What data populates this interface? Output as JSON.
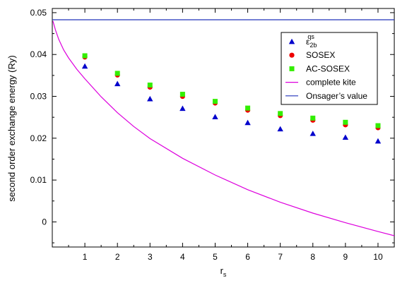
{
  "chart_data": {
    "type": "scatter",
    "title": "",
    "xlabel": "r",
    "xlabel_sub": "s",
    "ylabel": "second order exchange energy (Ry)",
    "xlim": [
      0,
      10.5
    ],
    "ylim": [
      -0.006,
      0.051
    ],
    "xticks": [
      1,
      2,
      3,
      4,
      5,
      6,
      7,
      8,
      9,
      10
    ],
    "yticks": [
      0,
      0.01,
      0.02,
      0.03,
      0.04,
      0.05
    ],
    "ytick_labels": [
      "0",
      "0.01",
      "0.02",
      "0.03",
      "0.04",
      "0.05"
    ],
    "legend_position": "top-right",
    "series": [
      {
        "name": "ε",
        "name_sub": "2b",
        "name_sup": "qs",
        "marker": "triangle",
        "color": "#0000cc",
        "x": [
          1,
          2,
          3,
          4,
          5,
          6,
          7,
          8,
          9,
          10
        ],
        "y": [
          0.0372,
          0.033,
          0.0294,
          0.0271,
          0.0251,
          0.0237,
          0.0222,
          0.0211,
          0.0202,
          0.0193
        ]
      },
      {
        "name": "SOSEX",
        "marker": "circle",
        "color": "#ee0000",
        "x": [
          1,
          2,
          3,
          4,
          5,
          6,
          7,
          8,
          9,
          10
        ],
        "y": [
          0.0394,
          0.0351,
          0.0322,
          0.03,
          0.0284,
          0.0267,
          0.0254,
          0.0243,
          0.0232,
          0.0225
        ]
      },
      {
        "name": "AC-SOSEX",
        "marker": "square",
        "color": "#33ee00",
        "x": [
          1,
          2,
          3,
          4,
          5,
          6,
          7,
          8,
          9,
          10
        ],
        "y": [
          0.0397,
          0.0355,
          0.0327,
          0.0305,
          0.0288,
          0.0272,
          0.0259,
          0.0248,
          0.0238,
          0.023
        ]
      },
      {
        "name": "complete kite",
        "marker": "line",
        "color": "#dd00dd",
        "x": [
          0.02,
          0.1,
          0.2,
          0.35,
          0.5,
          0.75,
          1,
          1.5,
          2,
          2.5,
          3,
          4,
          5,
          6,
          7,
          8,
          9,
          10,
          10.5
        ],
        "y": [
          0.048,
          0.0458,
          0.0436,
          0.0411,
          0.0392,
          0.0365,
          0.0342,
          0.0299,
          0.0261,
          0.0228,
          0.0199,
          0.0152,
          0.0112,
          0.0077,
          0.0047,
          0.0021,
          -0.0002,
          -0.0023,
          -0.0033
        ]
      },
      {
        "name": "Onsager’s value",
        "marker": "line",
        "color": "#2233bb",
        "x": [
          0,
          10.5
        ],
        "y": [
          0.0483,
          0.0483
        ]
      }
    ]
  }
}
